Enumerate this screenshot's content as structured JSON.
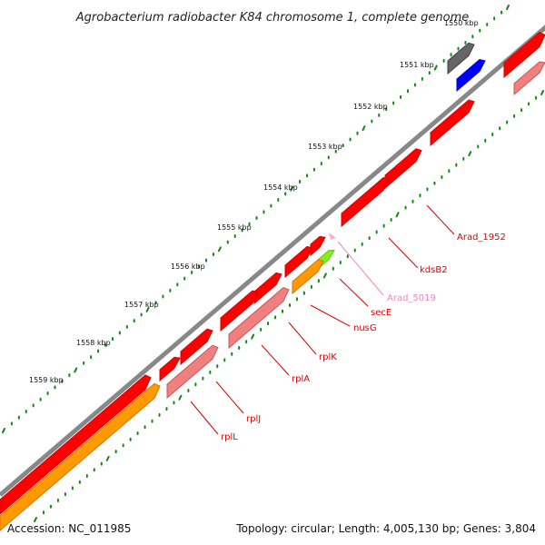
{
  "title": "Agrobacterium radiobacter K84 chromosome 1, complete genome",
  "footer": {
    "accession": "Accession: NC_011985",
    "summary": "Topology: circular; Length: 4,005,130 bp; Genes: 3,804"
  },
  "ruler": {
    "labels": [
      "1550 kbp",
      "1551 kbp",
      "1552 kbp",
      "1553 kbp",
      "1554 kbp",
      "1555 kbp",
      "1556 kbp",
      "1557 kbp",
      "1558 kbp",
      "1559 kbp"
    ]
  },
  "gene_labels": [
    {
      "text": "Arad_1952",
      "color": "#dd0000"
    },
    {
      "text": "kdsB2",
      "color": "#dd0000"
    },
    {
      "text": "Arad_5019",
      "color": "#ee88bb"
    },
    {
      "text": "secE",
      "color": "#dd0000"
    },
    {
      "text": "nusG",
      "color": "#dd0000"
    },
    {
      "text": "rplK",
      "color": "#dd0000"
    },
    {
      "text": "rplA",
      "color": "#dd0000"
    },
    {
      "text": "rplJ",
      "color": "#dd0000"
    },
    {
      "text": "rplL",
      "color": "#dd0000"
    }
  ],
  "colors": {
    "cds": "#ff0000",
    "rna": "#f08080",
    "orange": "#ff9900",
    "gray": "#666666",
    "blue": "#0000ff",
    "green": "#88ee22",
    "pink": "#ffaacc",
    "backbone": "#888888",
    "tick": "#118811"
  }
}
